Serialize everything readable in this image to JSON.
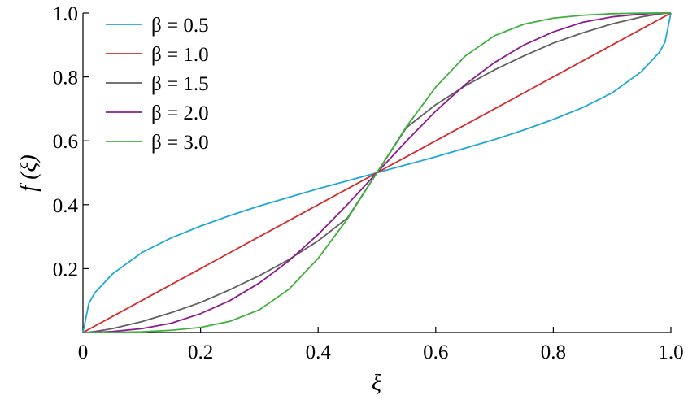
{
  "chart_data": {
    "type": "line",
    "xlabel": "ξ",
    "ylabel": "f (ξ)",
    "xlim": [
      0,
      1
    ],
    "ylim": [
      0,
      1
    ],
    "xticks": [
      0,
      0.2,
      0.4,
      0.6,
      0.8,
      1.0
    ],
    "xtick_labels": [
      "0",
      "0.2",
      "0.4",
      "0.6",
      "0.8",
      "1.0"
    ],
    "yticks": [
      0.2,
      0.4,
      0.6,
      0.8,
      1.0
    ],
    "ytick_labels": [
      "0.2",
      "0.4",
      "0.6",
      "0.8",
      "1.0"
    ],
    "grid": false,
    "legend_position": "top-left",
    "x": [
      0,
      0.01,
      0.02,
      0.05,
      0.1,
      0.15,
      0.2,
      0.25,
      0.3,
      0.35,
      0.4,
      0.45,
      0.5,
      0.55,
      0.6,
      0.65,
      0.7,
      0.75,
      0.8,
      0.85,
      0.9,
      0.95,
      0.98,
      0.99,
      1.0
    ],
    "series": [
      {
        "name": "β = 0.5",
        "color": "#1fa8d6",
        "values": [
          0,
          0.091,
          0.124,
          0.183,
          0.25,
          0.296,
          0.333,
          0.366,
          0.396,
          0.423,
          0.45,
          0.475,
          0.5,
          0.525,
          0.55,
          0.577,
          0.604,
          0.634,
          0.667,
          0.704,
          0.75,
          0.817,
          0.876,
          0.909,
          1.0
        ]
      },
      {
        "name": "β = 1.0",
        "color": "#d62b2b",
        "values": [
          0,
          0.01,
          0.02,
          0.05,
          0.1,
          0.15,
          0.2,
          0.25,
          0.3,
          0.35,
          0.4,
          0.45,
          0.5,
          0.55,
          0.6,
          0.65,
          0.7,
          0.75,
          0.8,
          0.85,
          0.9,
          0.95,
          0.98,
          0.99,
          1.0
        ]
      },
      {
        "name": "β = 1.5",
        "color": "#606060",
        "values": [
          0,
          0.001,
          0.003,
          0.012,
          0.034,
          0.062,
          0.094,
          0.134,
          0.178,
          0.228,
          0.287,
          0.359,
          0.5,
          0.641,
          0.713,
          0.772,
          0.822,
          0.866,
          0.906,
          0.938,
          0.966,
          0.988,
          0.997,
          0.999,
          1.0
        ]
      },
      {
        "name": "β = 2.0",
        "color": "#8e1b8e",
        "values": [
          0,
          0.0001,
          0.0004,
          0.003,
          0.012,
          0.029,
          0.059,
          0.1,
          0.155,
          0.224,
          0.307,
          0.401,
          0.5,
          0.599,
          0.693,
          0.776,
          0.845,
          0.9,
          0.941,
          0.971,
          0.988,
          0.997,
          0.9996,
          0.9999,
          1.0
        ]
      },
      {
        "name": "β = 3.0",
        "color": "#3fb03f",
        "values": [
          0,
          0,
          0,
          0.0003,
          0.002,
          0.007,
          0.016,
          0.035,
          0.071,
          0.135,
          0.232,
          0.356,
          0.5,
          0.644,
          0.768,
          0.865,
          0.929,
          0.965,
          0.984,
          0.993,
          0.998,
          0.9997,
          1.0,
          1.0,
          1.0
        ]
      }
    ]
  }
}
